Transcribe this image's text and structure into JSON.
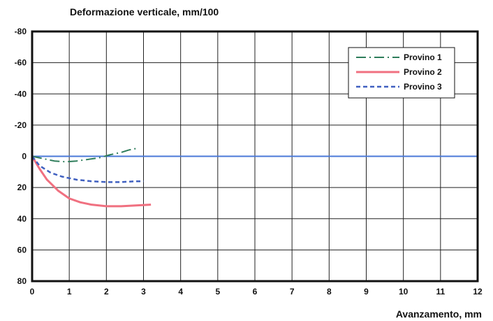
{
  "chart_data": {
    "type": "line",
    "ylabel": "Deformazione verticale, mm/100",
    "xlabel": "Avanzamento, mm",
    "xlim": [
      0,
      12
    ],
    "ylim": [
      -80,
      80
    ],
    "y_inverted": true,
    "x_ticks": [
      0,
      1,
      2,
      3,
      4,
      5,
      6,
      7,
      8,
      9,
      10,
      11,
      12
    ],
    "y_ticks": [
      -80,
      -60,
      -40,
      -20,
      0,
      20,
      40,
      60,
      80
    ],
    "grid": true,
    "legend_position": "top-right",
    "series": [
      {
        "name": "Provino 1",
        "color": "#2e7d5b",
        "dash": "long-dash-dot",
        "x": [
          0,
          0.3,
          0.6,
          0.9,
          1.2,
          1.5,
          1.8,
          2.1,
          2.4,
          2.6,
          2.8
        ],
        "y": [
          0,
          1.5,
          3,
          3.5,
          3,
          2,
          1,
          -1,
          -2.5,
          -4,
          -5
        ]
      },
      {
        "name": "Provino 2",
        "color": "#f07080",
        "dash": "solid",
        "x": [
          0,
          0.2,
          0.4,
          0.7,
          1.0,
          1.3,
          1.6,
          2.0,
          2.4,
          2.8,
          3.2
        ],
        "y": [
          0,
          8,
          15,
          22,
          27,
          29.5,
          31,
          32,
          32,
          31.5,
          31
        ]
      },
      {
        "name": "Provino 3",
        "color": "#4060c0",
        "dash": "dashed",
        "x": [
          0,
          0.2,
          0.5,
          0.8,
          1.2,
          1.6,
          2.0,
          2.4,
          2.8,
          3.0
        ],
        "y": [
          0,
          6,
          10.5,
          13,
          15,
          16,
          16.5,
          16.5,
          16,
          16
        ]
      }
    ],
    "reference_line": {
      "y": 0,
      "color": "#4a78d8"
    }
  }
}
